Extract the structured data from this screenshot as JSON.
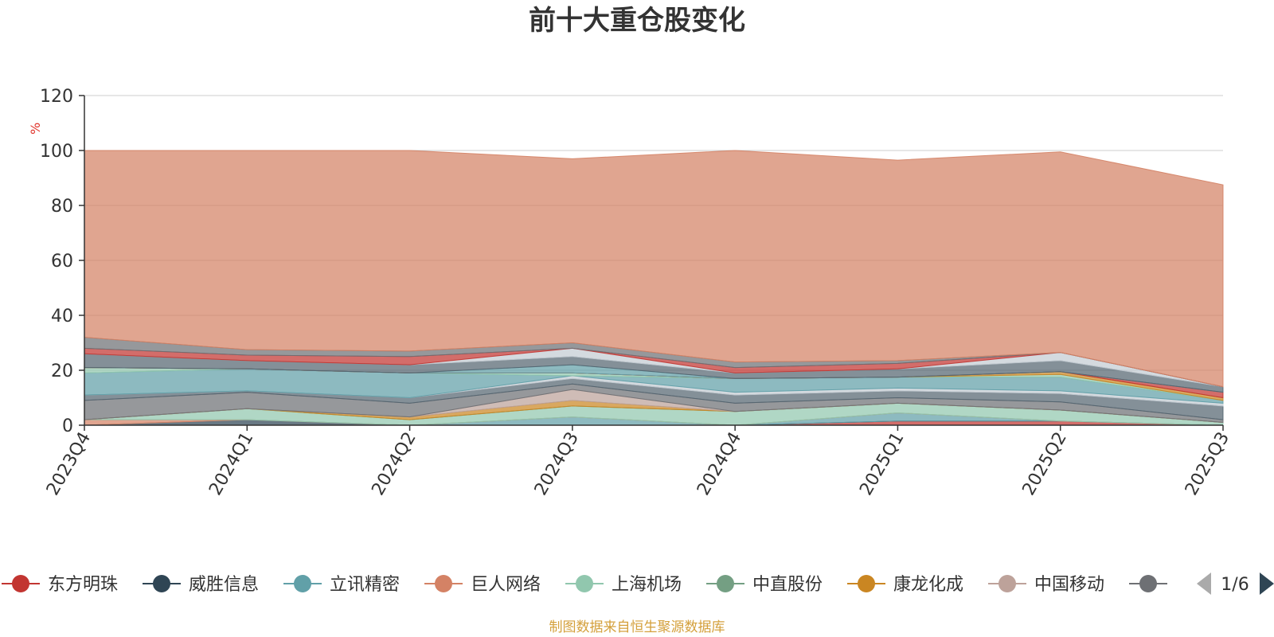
{
  "chart_data": {
    "type": "area",
    "stacked": true,
    "title": "前十大重仓股变化",
    "ylabel": "%",
    "ylim": [
      0,
      120
    ],
    "yticks": [
      0,
      20,
      40,
      60,
      80,
      100,
      120
    ],
    "grid": true,
    "legend_position": "bottom",
    "legend_page": "1/6",
    "categories": [
      "2023Q4",
      "2024Q1",
      "2024Q2",
      "2024Q3",
      "2024Q4",
      "2025Q1",
      "2025Q2",
      "2025Q3"
    ],
    "series": [
      {
        "name": "东方明珠",
        "color": "#c23531",
        "values": [
          0,
          0,
          0,
          0,
          0,
          1.5,
          1.5,
          0
        ]
      },
      {
        "name": "威胜信息",
        "color": "#2f4554",
        "values": [
          0,
          2,
          0,
          0,
          0,
          0,
          0,
          0
        ]
      },
      {
        "name": "立讯精密",
        "color": "#61a0a8",
        "values": [
          0,
          0,
          0,
          3,
          0,
          3,
          0,
          0
        ]
      },
      {
        "name": "巨人网络",
        "color": "#d48265",
        "values": [
          2,
          0,
          0,
          0,
          0,
          0,
          0,
          0
        ]
      },
      {
        "name": "上海机场",
        "color": "#91c7ae",
        "values": [
          0,
          4,
          2,
          4,
          5,
          3.5,
          4,
          1
        ]
      },
      {
        "name": "中直股份",
        "color": "#749f83",
        "values": [
          0,
          0,
          0,
          0,
          0,
          0,
          0,
          0
        ]
      },
      {
        "name": "康龙化成",
        "color": "#ca8622",
        "values": [
          0,
          0,
          1,
          2,
          0,
          0,
          0,
          0
        ]
      },
      {
        "name": "中国移动",
        "color": "#bda29a",
        "values": [
          0,
          0,
          0,
          4,
          0,
          0,
          0,
          0
        ]
      },
      {
        "name": "",
        "color": "#6e7074",
        "values": [
          7,
          6,
          5,
          2,
          3,
          2,
          3,
          1
        ]
      },
      {
        "name": "",
        "color": "#546570",
        "values": [
          2,
          0.5,
          2,
          2,
          3,
          2.5,
          3,
          5
        ]
      },
      {
        "name": "",
        "color": "#c4ccd3",
        "values": [
          0,
          0,
          0,
          1,
          1,
          1,
          1,
          1
        ]
      },
      {
        "name": "",
        "color": "#61a0a8",
        "values": [
          8,
          8,
          9,
          0,
          5,
          4,
          5,
          1
        ]
      },
      {
        "name": "",
        "color": "#91c7ae",
        "values": [
          2,
          0,
          0,
          1,
          0,
          0,
          1,
          0
        ]
      },
      {
        "name": "",
        "color": "#ca8622",
        "values": [
          0,
          0,
          0,
          0,
          0,
          0,
          1,
          1
        ]
      },
      {
        "name": "",
        "color": "#c23531",
        "values": [
          0,
          0,
          0,
          0,
          0,
          0,
          0,
          2
        ]
      },
      {
        "name": "",
        "color": "#61a0a8",
        "values": [
          0,
          0,
          0,
          3,
          0,
          0,
          0,
          0
        ]
      },
      {
        "name": "",
        "color": "#546570",
        "values": [
          5,
          3,
          3,
          3,
          2,
          3,
          4,
          2
        ]
      },
      {
        "name": "",
        "color": "#c4ccd3",
        "values": [
          0,
          0,
          0,
          3,
          0,
          0,
          3,
          0
        ]
      },
      {
        "name": "",
        "color": "#c23531",
        "values": [
          2,
          2,
          3,
          0,
          2,
          2,
          0,
          0
        ]
      },
      {
        "name": "",
        "color": "#6e7074",
        "values": [
          4,
          2,
          2,
          2,
          2,
          1,
          0,
          0
        ]
      },
      {
        "name": "",
        "color": "#d48265",
        "values": [
          68,
          72.5,
          73,
          67,
          77,
          73,
          73,
          73.5
        ]
      }
    ]
  },
  "footer": {
    "source_note": "制图数据来自恒生聚源数据库"
  }
}
